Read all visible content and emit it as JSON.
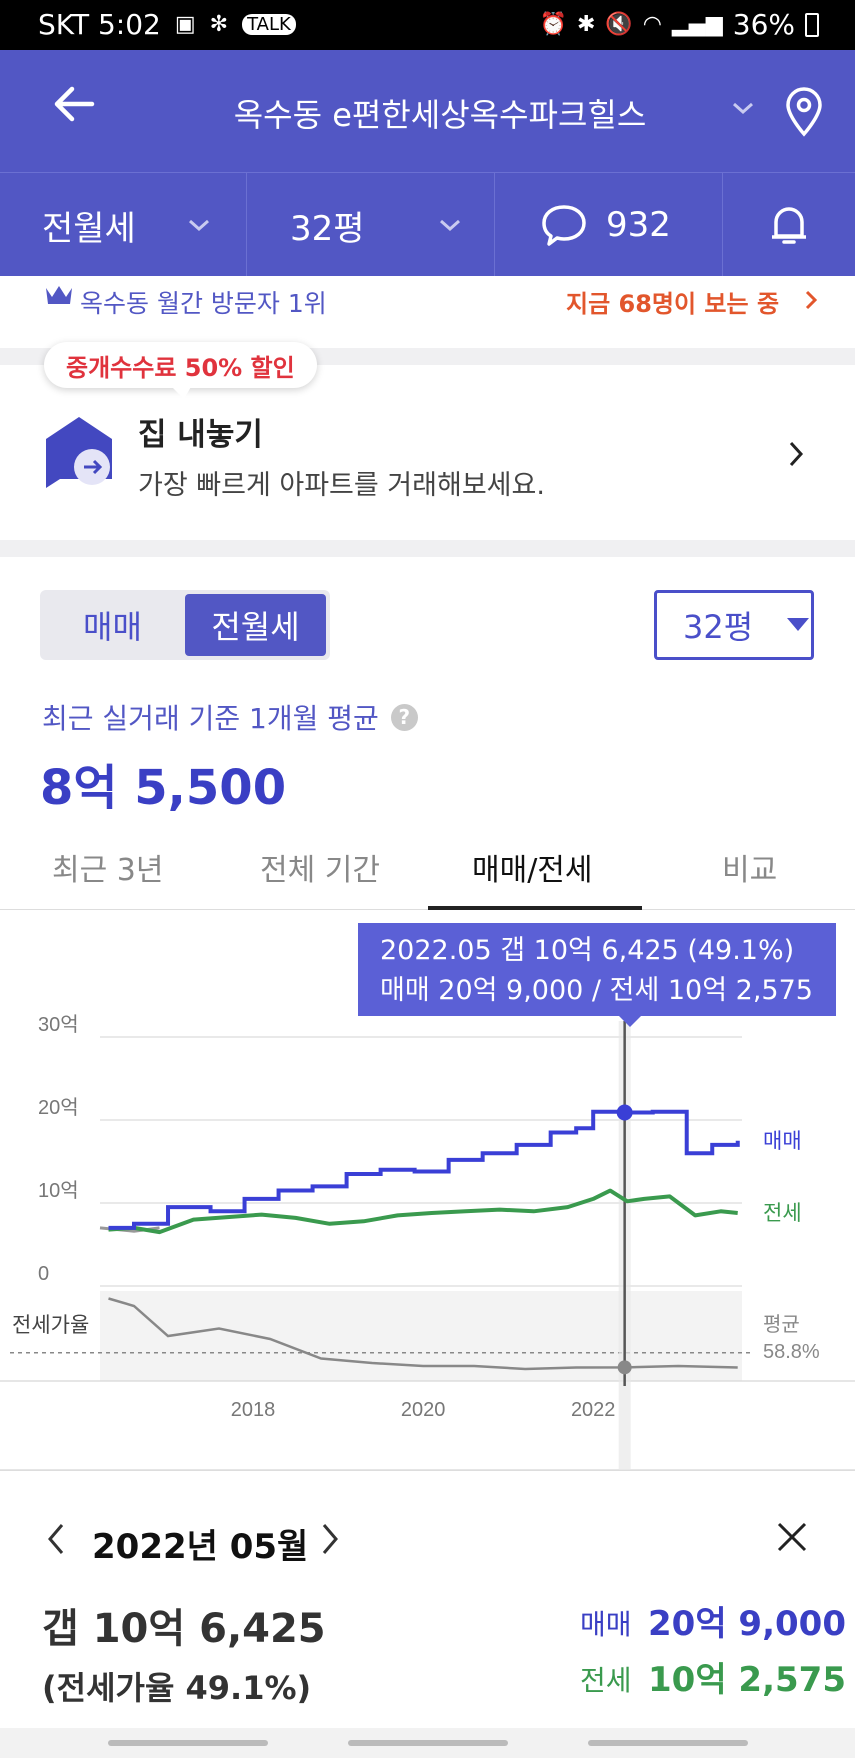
{
  "status_bar": {
    "carrier_time": "SKT 5:02",
    "battery": "36%"
  },
  "header": {
    "title": "옥수동 e편한세상옥수파크힐스"
  },
  "subbar": {
    "trade_type": "전월세",
    "size": "32평",
    "comments": "932"
  },
  "info_bar": {
    "rank_text": "옥수동 월간 방문자 1위",
    "viewers_text": "지금 68명이 보는 중"
  },
  "promo": {
    "badge": "중개수수료 50% 할인",
    "title": "집 내놓기",
    "subtitle": "가장 빠르게 아파트를 거래해보세요."
  },
  "segment": {
    "options": [
      "매매",
      "전월세"
    ],
    "selected": "전월세"
  },
  "size_select": {
    "value": "32평"
  },
  "price_summary": {
    "label": "최근 실거래 기준 1개월 평균",
    "value": "8억 5,500"
  },
  "tabs": {
    "items": [
      "최근 3년",
      "전체 기간",
      "매매/전세",
      "비교"
    ],
    "active_index": 2
  },
  "tooltip": {
    "line1": "2022.05  갭 10억 6,425 (49.1%)",
    "line2": "매매 20억 9,000 / 전세 10억 2,575"
  },
  "chart_data": {
    "type": "line",
    "y_ticks": [
      "30억",
      "20억",
      "10억",
      "0"
    ],
    "x_ticks": [
      "2018",
      "2020",
      "2022"
    ],
    "ylim": [
      0,
      30
    ],
    "series": [
      {
        "name": "매매",
        "color": "#3a3fd6",
        "x": [
          2016.3,
          2016.6,
          2017.0,
          2017.5,
          2017.9,
          2018.3,
          2018.7,
          2019.1,
          2019.5,
          2019.9,
          2020.3,
          2020.7,
          2021.1,
          2021.5,
          2021.8,
          2022.0,
          2022.4,
          2022.7,
          2023.0,
          2023.1,
          2023.4,
          2023.7
        ],
        "values": [
          7,
          7.5,
          9.5,
          9,
          10.5,
          11.5,
          12,
          13.5,
          14,
          13.8,
          15.2,
          16,
          17,
          18.5,
          19,
          21,
          20.9,
          21,
          21,
          16,
          17,
          17.5
        ]
      },
      {
        "name": "전세",
        "color": "#3a9a4e",
        "x": [
          2016.3,
          2016.6,
          2016.9,
          2017.3,
          2017.7,
          2018.1,
          2018.5,
          2018.9,
          2019.3,
          2019.7,
          2020.1,
          2020.5,
          2020.9,
          2021.3,
          2021.7,
          2022.0,
          2022.2,
          2022.4,
          2022.6,
          2022.9,
          2023.2,
          2023.5,
          2023.7
        ],
        "values": [
          6.8,
          7,
          6.5,
          8,
          8.3,
          8.6,
          8.2,
          7.5,
          7.8,
          8.5,
          8.8,
          9,
          9.2,
          9,
          9.5,
          10.5,
          11.5,
          10.2,
          10.5,
          10.8,
          8.5,
          9,
          8.8
        ]
      },
      {
        "name": "평균",
        "x": [
          2016.3,
          2016.6,
          2017.0,
          2017.6,
          2018.2,
          2018.8,
          2019.4,
          2020.0,
          2020.6,
          2021.2,
          2021.8,
          2022.4,
          2023.0,
          2023.7
        ],
        "values": [
          95,
          90,
          70,
          75,
          68,
          55,
          52,
          50,
          50,
          48,
          49,
          49.1,
          50,
          49
        ]
      }
    ],
    "ratio_label": "전세가율",
    "avg_label": "평균",
    "avg_value": "58.8%",
    "highlight_x": "2022.05"
  },
  "bottom_panel": {
    "month_label": "2022년 05월",
    "gap_text": "갭 10억 6,425",
    "ratio_text": "(전세가율 49.1%)",
    "sale_label": "매매",
    "sale_value": "20억 9,000",
    "jeonse_label": "전세",
    "jeonse_value": "10억 2,575"
  }
}
